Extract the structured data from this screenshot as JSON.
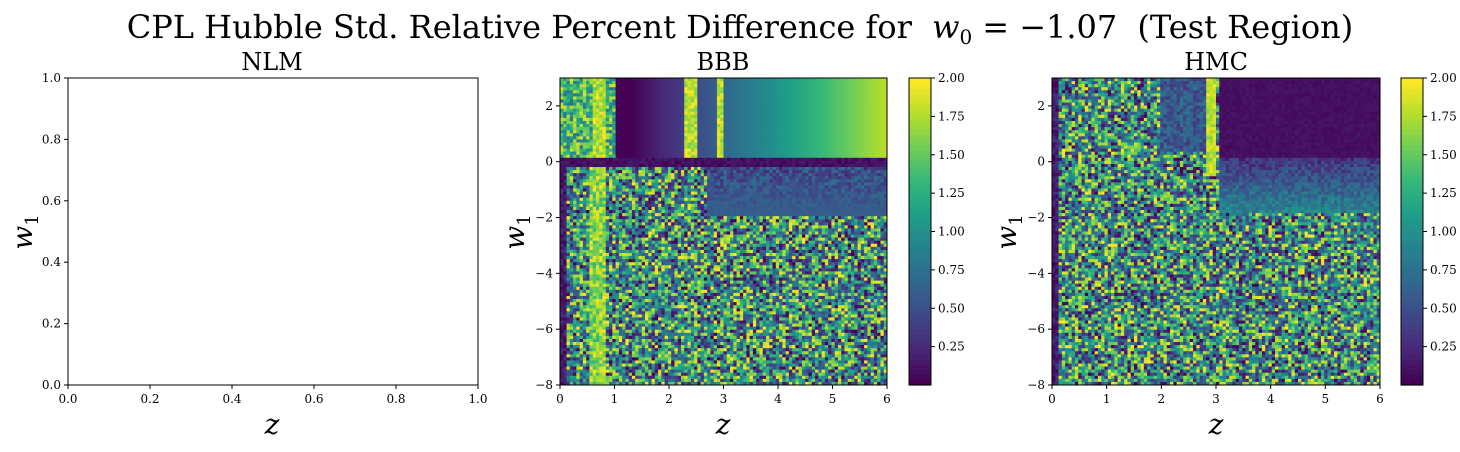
{
  "figure": {
    "suptitle_prefix": "CPL Hubble Std. Relative Percent Difference for",
    "suptitle_param": "w",
    "suptitle_param_sub": "0",
    "suptitle_eq": "= −1.07",
    "suptitle_suffix": "(Test Region)"
  },
  "colormap": {
    "name": "viridis",
    "stops": [
      "#440154",
      "#482878",
      "#3e4989",
      "#31688e",
      "#26828e",
      "#1f9e89",
      "#35b779",
      "#6ece58",
      "#b5de2b",
      "#fde725"
    ]
  },
  "chart_data": [
    {
      "type": "heatmap",
      "title": "NLM",
      "xlabel": "z",
      "ylabel": "w",
      "ylabel_sub": "1",
      "xlim": [
        0.0,
        1.0
      ],
      "ylim": [
        0.0,
        1.0
      ],
      "x_ticks": [
        "0.0",
        "0.2",
        "0.4",
        "0.6",
        "0.8",
        "1.0"
      ],
      "y_ticks": [
        "0.0",
        "0.2",
        "0.4",
        "0.6",
        "0.8",
        "1.0"
      ],
      "empty": true
    },
    {
      "type": "heatmap",
      "title": "BBB",
      "xlabel": "z",
      "ylabel": "w",
      "ylabel_sub": "1",
      "xlim": [
        0,
        6
      ],
      "ylim": [
        -8,
        3
      ],
      "x_ticks": [
        "0",
        "1",
        "2",
        "3",
        "4",
        "5",
        "6"
      ],
      "y_ticks": [
        "−8",
        "−6",
        "−4",
        "−2",
        "0",
        "2"
      ],
      "colorbar": {
        "range": [
          0.0,
          2.0
        ],
        "ticks": [
          "0.25",
          "0.50",
          "0.75",
          "1.00",
          "1.25",
          "1.50",
          "1.75",
          "2.00"
        ]
      },
      "grid": {
        "nx": 100,
        "ny": 100
      },
      "description_regions": {
        "noise_below_w1": 0.0,
        "bright_bands_z": [
          0.7,
          2.4,
          2.95
        ],
        "smooth_gradient_above_w1": 0.0,
        "dark_band_w1": [
          -2.0,
          0.0
        ]
      }
    },
    {
      "type": "heatmap",
      "title": "HMC",
      "xlabel": "z",
      "ylabel": "w",
      "ylabel_sub": "1",
      "xlim": [
        0,
        6
      ],
      "ylim": [
        -8,
        3
      ],
      "x_ticks": [
        "0",
        "1",
        "2",
        "3",
        "4",
        "5",
        "6"
      ],
      "y_ticks": [
        "−8",
        "−6",
        "−4",
        "−2",
        "0",
        "2"
      ],
      "colorbar": {
        "range": [
          0.0,
          2.0
        ],
        "ticks": [
          "0.25",
          "0.50",
          "0.75",
          "1.00",
          "1.25",
          "1.50",
          "1.75",
          "2.00"
        ]
      },
      "grid": {
        "nx": 100,
        "ny": 100
      },
      "description_regions": {
        "noise_below_w1": 0.0,
        "bright_band_z": 2.9,
        "dark_corner_above_w1": 0.0,
        "dark_corner_z_from": 3.0
      }
    }
  ]
}
